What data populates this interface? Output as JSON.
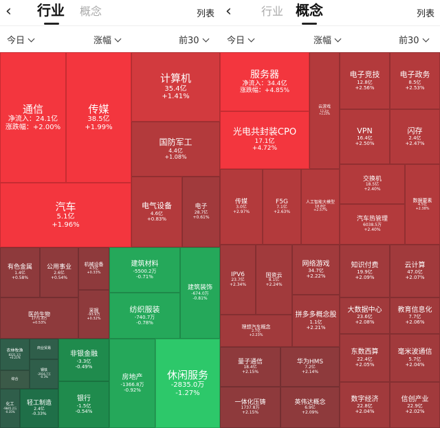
{
  "left": {
    "header": {
      "back": "‹",
      "tab_active": "行业",
      "tab_inactive": "概念",
      "list": "列表"
    },
    "filters": {
      "period": "今日",
      "sort": "涨幅",
      "top": "前30"
    },
    "tiles": [
      {
        "name": "通信",
        "v1": "净流入：24.1亿",
        "v2": "涨跌幅：+2.00%"
      },
      {
        "name": "传媒",
        "v1": "38.5亿",
        "v2": "+1.99%"
      },
      {
        "name": "计算机",
        "v1": "35.4亿",
        "v2": "+1.41%"
      },
      {
        "name": "国防军工",
        "v1": "4.4亿",
        "v2": "+1.08%"
      },
      {
        "name": "汽车",
        "v1": "5.1亿",
        "v2": "+1.96%"
      },
      {
        "name": "电气设备",
        "v1": "4.6亿",
        "v2": "+0.83%"
      },
      {
        "name": "电子",
        "v1": "28.7亿",
        "v2": "+0.61%"
      },
      {
        "name": "有色金属",
        "v1": "1.4亿",
        "v2": "+0.58%"
      },
      {
        "name": "公用事业",
        "v1": "2.6亿",
        "v2": "+0.54%"
      },
      {
        "name": "机械设备",
        "v1": "4.5亿",
        "v2": "+0.33%"
      },
      {
        "name": "医药生物",
        "v1": "1771.8万",
        "v2": "+0.53%"
      },
      {
        "name": "采掘",
        "v1": "-93.9万",
        "v2": "+0.32%"
      },
      {
        "name": "建筑材料",
        "v1": "-5500.2万",
        "v2": "-0.71%"
      },
      {
        "name": "建筑装饰",
        "v1": "-674.0万",
        "v2": "-0.81%"
      },
      {
        "name": "纺织服装",
        "v1": "-740.7万",
        "v2": "-0.78%"
      },
      {
        "name": "农林牧渔",
        "v1": "8321.1万",
        "v2": "+0.21%"
      },
      {
        "name": "商业贸易",
        "v1": "",
        "v2": ""
      },
      {
        "name": "钢铁",
        "v1": "-2916.7万",
        "v2": "-0.3%"
      },
      {
        "name": "综合",
        "v1": "",
        "v2": ""
      },
      {
        "name": "化工",
        "v1": "-9845.2万",
        "v2": "-0.35%"
      },
      {
        "name": "轻工制造",
        "v1": "2.4亿",
        "v2": "-0.33%"
      },
      {
        "name": "非银金融",
        "v1": "-3.3亿",
        "v2": "-0.49%"
      },
      {
        "name": "银行",
        "v1": "-1.5亿",
        "v2": "-0.54%"
      },
      {
        "name": "房地产",
        "v1": "-1366.8万",
        "v2": "-0.92%"
      },
      {
        "name": "休闲服务",
        "v1": "-2835.0万",
        "v2": "-1.27%"
      }
    ]
  },
  "right": {
    "header": {
      "back": "‹",
      "tab_active": "概念",
      "tab_inactive": "行业",
      "list": "列表"
    },
    "filters": {
      "period": "今日",
      "sort": "涨幅",
      "top": "前30"
    },
    "tiles": [
      {
        "name": "服务器",
        "v1": "净流入：34.4亿",
        "v2": "涨跌幅：+4.85%"
      },
      {
        "name": "云游戏",
        "v1": "13.3亿",
        "v2": "+2.25%"
      },
      {
        "name": "电子竞技",
        "v1": "12.8亿",
        "v2": "+2.56%"
      },
      {
        "name": "电子政务",
        "v1": "8.5亿",
        "v2": "+2.53%"
      },
      {
        "name": "光电共封装CPO",
        "v1": "17.1亿",
        "v2": "+4.72%"
      },
      {
        "name": "VPN",
        "v1": "16.4亿",
        "v2": "+2.50%"
      },
      {
        "name": "闪存",
        "v1": "2.4亿",
        "v2": "+2.47%"
      },
      {
        "name": "交换机",
        "v1": "18.5亿",
        "v2": "+2.40%"
      },
      {
        "name": "数据要素",
        "v1": "4.5亿",
        "v2": "+2.38%"
      },
      {
        "name": "传媒",
        "v1": "3.0亿",
        "v2": "+2.97%"
      },
      {
        "name": "F5G",
        "v1": "7.1亿",
        "v2": "+2.63%"
      },
      {
        "name": "人工智能大模型",
        "v1": "18.8亿",
        "v2": "+2.57%"
      },
      {
        "name": "汽车热管理",
        "v1": "6038.5万",
        "v2": "+2.40%"
      },
      {
        "name": "IPV6",
        "v1": "23.7亿",
        "v2": "+2.34%"
      },
      {
        "name": "国资云",
        "v1": "8.1亿",
        "v2": "+2.24%"
      },
      {
        "name": "网络游戏",
        "v1": "34.7亿",
        "v2": "+2.22%"
      },
      {
        "name": "知识付费",
        "v1": "19.9亿",
        "v2": "+2.09%"
      },
      {
        "name": "云计算",
        "v1": "47.0亿",
        "v2": "+2.07%"
      },
      {
        "name": "理想汽车概念",
        "v1": "2.7亿",
        "v2": "+2.23%"
      },
      {
        "name": "拼多多概念股",
        "v1": "1.1亿",
        "v2": "+2.21%"
      },
      {
        "name": "大数据中心",
        "v1": "23.6亿",
        "v2": "+2.08%"
      },
      {
        "name": "教育信息化",
        "v1": "7.7亿",
        "v2": "+2.06%"
      },
      {
        "name": "量子通信",
        "v1": "18.4亿",
        "v2": "+2.15%"
      },
      {
        "name": "华为HMS",
        "v1": "7.2亿",
        "v2": "+2.14%"
      },
      {
        "name": "东数西算",
        "v1": "22.4亿",
        "v2": "+2.05%"
      },
      {
        "name": "毫米波通信",
        "v1": "5.7亿",
        "v2": "+2.04%"
      },
      {
        "name": "一体化压铸",
        "v1": "1737.8万",
        "v2": "+2.15%"
      },
      {
        "name": "英伟达概念",
        "v1": "6.9亿",
        "v2": "+2.09%"
      },
      {
        "name": "数字经济",
        "v1": "22.8亿",
        "v2": "+2.04%"
      },
      {
        "name": "信创产业",
        "v1": "22.9亿",
        "v2": "+2.02%"
      }
    ]
  }
}
